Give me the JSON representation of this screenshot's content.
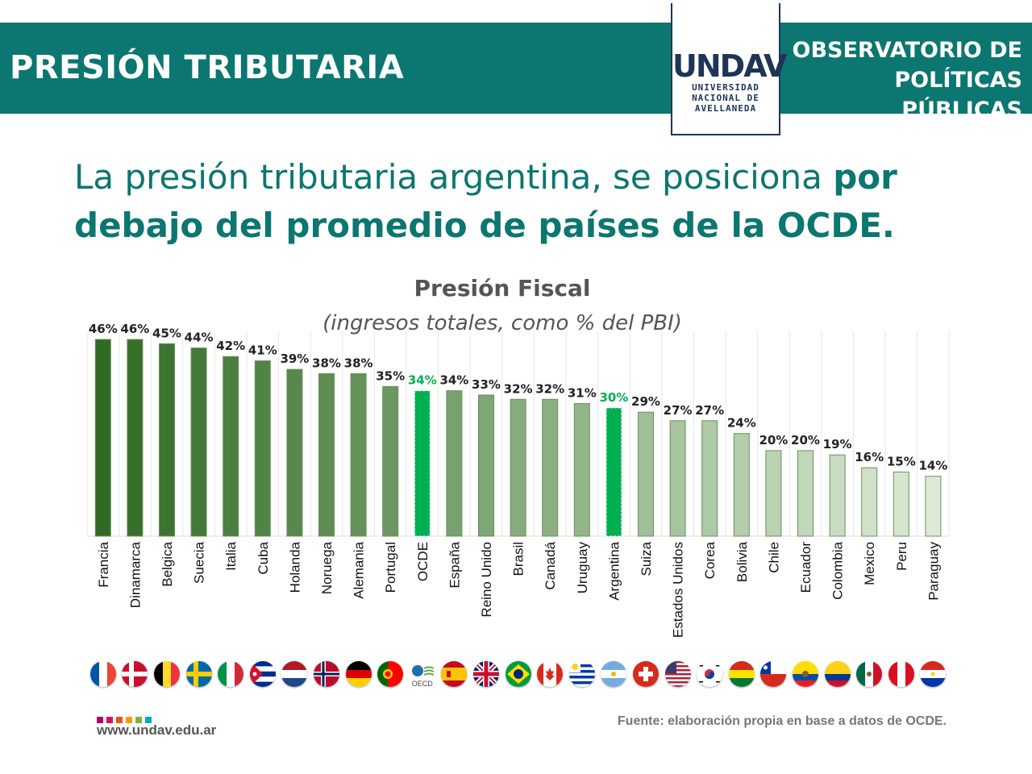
{
  "header": {
    "title": "PRESIÓN TRIBUTARIA",
    "logo_mark": "UNDAV",
    "logo_lines": [
      "UNIVERSIDAD",
      "NACIONAL DE",
      "AVELLANEDA"
    ],
    "observatorio_lines": [
      "OBSERVATORIO DE",
      "POLÍTICAS PÚBLICAS"
    ],
    "color": "#0c7670"
  },
  "headline": {
    "normal": "La presión tributaria argentina, se posiciona ",
    "bold": "por debajo del promedio de países de la OCDE",
    "end": "."
  },
  "chart_data": {
    "type": "bar",
    "title": "Presión Fiscal",
    "subtitle": "(ingresos totales, como % del PBI)",
    "ylim": [
      0,
      50
    ],
    "grid": "vertical",
    "categories": [
      "Francia",
      "Dinamarca",
      "Belgica",
      "Suecia",
      "Italia",
      "Cuba",
      "Holanda",
      "Noruega",
      "Alemania",
      "Portugal",
      "OCDE",
      "España",
      "Reino Unido",
      "Brasil",
      "Canadá",
      "Uruguay",
      "Argentina",
      "Suiza",
      "Estados Unidos",
      "Corea",
      "Bolivia",
      "Chile",
      "Ecuador",
      "Colombia",
      "Mexico",
      "Peru",
      "Paraguay"
    ],
    "values": [
      46,
      46,
      45,
      44,
      42,
      41,
      39,
      38,
      38,
      35,
      34,
      34,
      33,
      32,
      32,
      31,
      30,
      29,
      27,
      27,
      24,
      20,
      20,
      19,
      16,
      15,
      14
    ],
    "data_labels": [
      "46%",
      "46%",
      "45%",
      "44%",
      "42%",
      "41%",
      "39%",
      "38%",
      "38%",
      "35%",
      "34%",
      "34%",
      "33%",
      "32%",
      "32%",
      "31%",
      "30%",
      "29%",
      "27%",
      "27%",
      "24%",
      "20%",
      "20%",
      "19%",
      "16%",
      "15%",
      "14%"
    ],
    "highlighted": [
      "OCDE",
      "Argentina"
    ],
    "gradient_dark": "#2f6b22",
    "gradient_light": "#dcebd6",
    "highlight_color": "#00b050"
  },
  "flags": [
    "france-flag-icon",
    "denmark-flag-icon",
    "belgium-flag-icon",
    "sweden-flag-icon",
    "italy-flag-icon",
    "cuba-flag-icon",
    "netherlands-flag-icon",
    "norway-flag-icon",
    "germany-flag-icon",
    "portugal-flag-icon",
    "oecd-logo-icon",
    "spain-flag-icon",
    "uk-flag-icon",
    "brazil-flag-icon",
    "canada-flag-icon",
    "uruguay-flag-icon",
    "argentina-flag-icon",
    "switzerland-flag-icon",
    "usa-flag-icon",
    "korea-flag-icon",
    "bolivia-flag-icon",
    "chile-flag-icon",
    "ecuador-flag-icon",
    "colombia-flag-icon",
    "mexico-flag-icon",
    "peru-flag-icon",
    "paraguay-flag-icon"
  ],
  "oecd_label": "OECD",
  "footer": {
    "url": "www.undav.edu.ar",
    "source": "Fuente: elaboración propia en base a datos de OCDE.",
    "dot_colors": [
      "#b5006e",
      "#d4145a",
      "#e8541e",
      "#f39c12",
      "#7cb342",
      "#00acc1"
    ]
  }
}
